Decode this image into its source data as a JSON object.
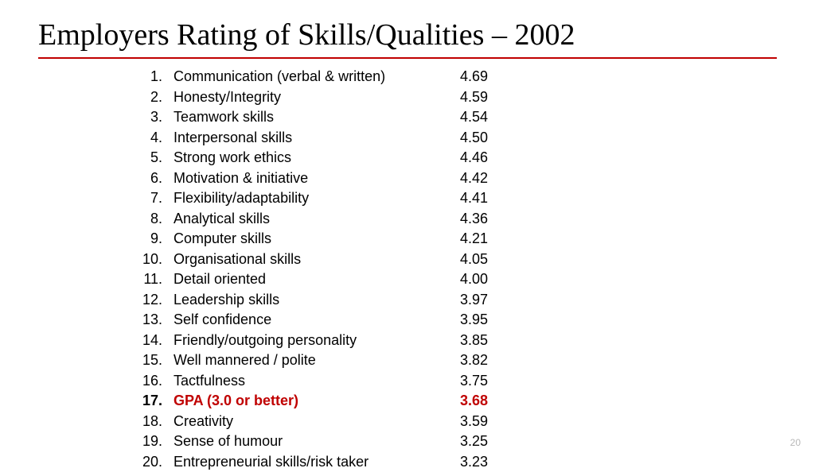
{
  "title": "Employers Rating of Skills/Qualities – 2002",
  "slide_number": "20",
  "highlight_color": "#c00000",
  "text_color": "#000000",
  "items": [
    {
      "rank": "1.",
      "label": "Communication (verbal & written)",
      "score": "4.69",
      "highlight": false
    },
    {
      "rank": "2.",
      "label": "Honesty/Integrity",
      "score": "4.59",
      "highlight": false
    },
    {
      "rank": "3.",
      "label": "Teamwork skills",
      "score": "4.54",
      "highlight": false
    },
    {
      "rank": "4.",
      "label": "Interpersonal skills",
      "score": "4.50",
      "highlight": false
    },
    {
      "rank": "5.",
      "label": "Strong work ethics",
      "score": "4.46",
      "highlight": false
    },
    {
      "rank": "6.",
      "label": "Motivation & initiative",
      "score": "4.42",
      "highlight": false
    },
    {
      "rank": "7.",
      "label": "Flexibility/adaptability",
      "score": "4.41",
      "highlight": false
    },
    {
      "rank": "8.",
      "label": "Analytical skills",
      "score": "4.36",
      "highlight": false
    },
    {
      "rank": "9.",
      "label": "Computer skills",
      "score": "4.21",
      "highlight": false
    },
    {
      "rank": "10.",
      "label": "Organisational skills",
      "score": "4.05",
      "highlight": false
    },
    {
      "rank": "11.",
      "label": "Detail oriented",
      "score": "4.00",
      "highlight": false
    },
    {
      "rank": "12.",
      "label": "Leadership skills",
      "score": "3.97",
      "highlight": false
    },
    {
      "rank": "13.",
      "label": "Self confidence",
      "score": "3.95",
      "highlight": false
    },
    {
      "rank": "14.",
      "label": "Friendly/outgoing personality",
      "score": "3.85",
      "highlight": false
    },
    {
      "rank": "15.",
      "label": "Well mannered / polite",
      "score": "3.82",
      "highlight": false
    },
    {
      "rank": "16.",
      "label": "Tactfulness",
      "score": "3.75",
      "highlight": false
    },
    {
      "rank": "17.",
      "label": "GPA (3.0 or better)",
      "score": "3.68",
      "highlight": true
    },
    {
      "rank": "18.",
      "label": "Creativity",
      "score": "3.59",
      "highlight": false
    },
    {
      "rank": "19.",
      "label": "Sense of humour",
      "score": "3.25",
      "highlight": false
    },
    {
      "rank": "20.",
      "label": "Entrepreneurial skills/risk taker",
      "score": "3.23",
      "highlight": false
    }
  ]
}
